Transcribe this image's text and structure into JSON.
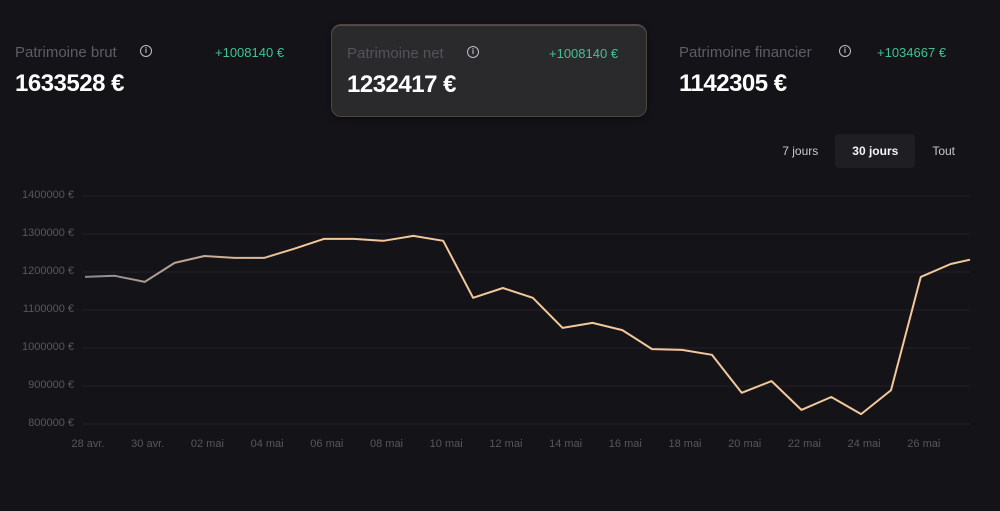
{
  "cards": [
    {
      "label": "Patrimoine brut",
      "delta": "+1008140 €",
      "value": "1633528 €",
      "active": false
    },
    {
      "label": "Patrimoine net",
      "delta": "+1008140 €",
      "value": "1232417 €",
      "active": true
    },
    {
      "label": "Patrimoine financier",
      "delta": "+1034667 €",
      "value": "1142305 €",
      "active": false
    }
  ],
  "period_tabs": [
    {
      "label": "7 jours",
      "selected": false
    },
    {
      "label": "30 jours",
      "selected": true
    },
    {
      "label": "Tout",
      "selected": false
    }
  ],
  "colors": {
    "background": "#141318",
    "positive": "#3fc392",
    "line_start": "#8a8a8e",
    "line_end": "#f2c79a",
    "grid": "#232228"
  },
  "chart_data": {
    "type": "line",
    "title": "Patrimoine net",
    "xlabel": "",
    "ylabel": "",
    "ylim": [
      800000,
      1400000
    ],
    "y_ticks": [
      "1400000 €",
      "1300000 €",
      "1200000 €",
      "1100000 €",
      "1000000 €",
      "900000 €",
      "800000 €"
    ],
    "x_tick_labels": [
      "28 avr.",
      "30 avr.",
      "02 mai",
      "04 mai",
      "06 mai",
      "08 mai",
      "10 mai",
      "12 mai",
      "14 mai",
      "16 mai",
      "18 mai",
      "20 mai",
      "22 mai",
      "24 mai",
      "26 mai"
    ],
    "grid": true,
    "x": [
      "28 avr.",
      "29 avr.",
      "30 avr.",
      "01 mai",
      "02 mai",
      "03 mai",
      "04 mai",
      "05 mai",
      "06 mai",
      "07 mai",
      "08 mai",
      "09 mai",
      "10 mai",
      "11 mai",
      "12 mai",
      "13 mai",
      "14 mai",
      "15 mai",
      "16 mai",
      "17 mai",
      "18 mai",
      "19 mai",
      "20 mai",
      "21 mai",
      "22 mai",
      "23 mai",
      "24 mai",
      "25 mai",
      "26 mai",
      "27 mai",
      "28 mai"
    ],
    "series": [
      {
        "name": "Patrimoine net",
        "values": [
          1187000,
          1190000,
          1174000,
          1224000,
          1242000,
          1237000,
          1237000,
          1261000,
          1287000,
          1287000,
          1282000,
          1295000,
          1282000,
          1132000,
          1158000,
          1132000,
          1053000,
          1066000,
          1047000,
          997000,
          995000,
          982000,
          882000,
          913000,
          837000,
          871000,
          826000,
          889000,
          1187000,
          1221000,
          1232417
        ]
      }
    ]
  }
}
